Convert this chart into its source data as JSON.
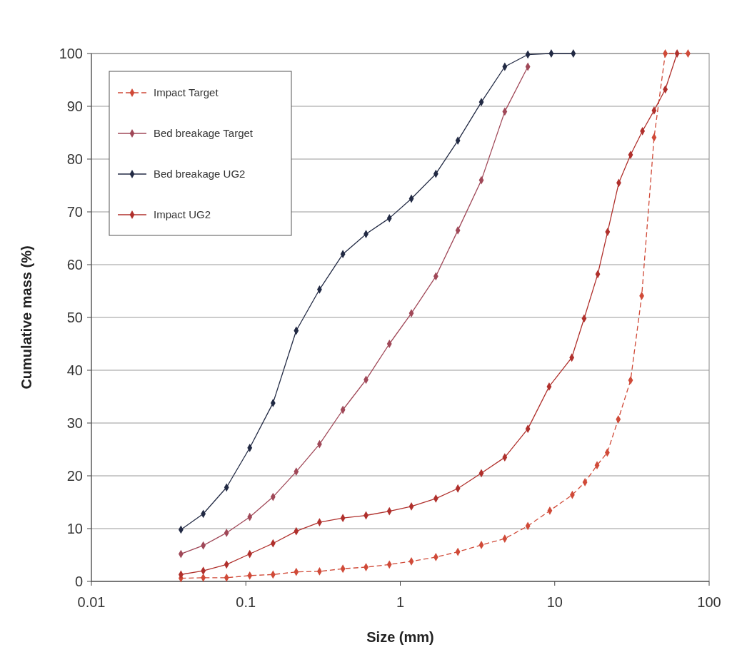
{
  "chart_data": {
    "type": "line",
    "xlabel": "Size (mm)",
    "ylabel": "Cumulative mass (%)",
    "log": "x",
    "grid": "y",
    "legend": "top left",
    "marker": "diamond",
    "xlim": [
      0.01,
      100
    ],
    "xticks": [
      0.01,
      0.1,
      1,
      10,
      100
    ],
    "ylim": [
      0,
      100
    ],
    "yticks": [
      0,
      10,
      20,
      30,
      40,
      50,
      60,
      70,
      80,
      90,
      100
    ],
    "series": [
      {
        "name": "Impact Target",
        "color": "#d04a38",
        "line_style": "dashed",
        "x": [
          0.038,
          0.053,
          0.075,
          0.106,
          0.15,
          0.212,
          0.3,
          0.425,
          0.6,
          0.85,
          1.18,
          1.7,
          2.36,
          3.35,
          4.75,
          6.7,
          9.3,
          13,
          15.7,
          18.8,
          21.9,
          25.8,
          31,
          36.6,
          44,
          52,
          62,
          73
        ],
        "values": [
          0.6,
          0.7,
          0.7,
          1.1,
          1.3,
          1.8,
          1.9,
          2.4,
          2.7,
          3.2,
          3.8,
          4.6,
          5.6,
          6.9,
          8.1,
          10.5,
          13.4,
          16.4,
          18.8,
          22,
          24.4,
          30.7,
          38.1,
          54.1,
          84.1,
          100,
          null,
          100
        ]
      },
      {
        "name": "Bed breakage Target",
        "color": "#a04858",
        "line_style": "solid",
        "x": [
          0.038,
          0.053,
          0.075,
          0.106,
          0.15,
          0.212,
          0.3,
          0.425,
          0.6,
          0.85,
          1.18,
          1.7,
          2.36,
          3.35,
          4.75,
          6.7
        ],
        "values": [
          5.2,
          6.8,
          9.2,
          12.2,
          16,
          20.8,
          26,
          32.5,
          38.2,
          45,
          50.8,
          57.8,
          66.5,
          76,
          89,
          97.5
        ]
      },
      {
        "name": "Bed breakage UG2",
        "color": "#222a44",
        "line_style": "solid",
        "x": [
          0.038,
          0.053,
          0.075,
          0.106,
          0.15,
          0.212,
          0.3,
          0.425,
          0.6,
          0.85,
          1.18,
          1.7,
          2.36,
          3.35,
          4.75,
          6.7,
          9.5,
          13.2
        ],
        "values": [
          9.8,
          12.8,
          17.8,
          25.3,
          33.8,
          47.5,
          55.3,
          62,
          65.8,
          68.8,
          72.5,
          77.2,
          83.5,
          90.8,
          97.5,
          99.8,
          100,
          100
        ]
      },
      {
        "name": "Impact UG2",
        "color": "#b0302c",
        "line_style": "solid",
        "x": [
          0.038,
          0.053,
          0.075,
          0.106,
          0.15,
          0.212,
          0.3,
          0.425,
          0.6,
          0.85,
          1.18,
          1.7,
          2.36,
          3.35,
          4.75,
          6.7,
          9.2,
          12.9,
          15.5,
          19,
          22,
          26,
          31,
          37,
          44,
          52,
          62
        ],
        "values": [
          1.3,
          2,
          3.2,
          5.2,
          7.2,
          9.5,
          11.2,
          12,
          12.5,
          13.3,
          14.2,
          15.7,
          17.6,
          20.5,
          23.5,
          28.9,
          36.9,
          42.4,
          49.8,
          58.2,
          66.2,
          75.5,
          80.8,
          85.3,
          89.2,
          93.2,
          100
        ]
      }
    ]
  }
}
